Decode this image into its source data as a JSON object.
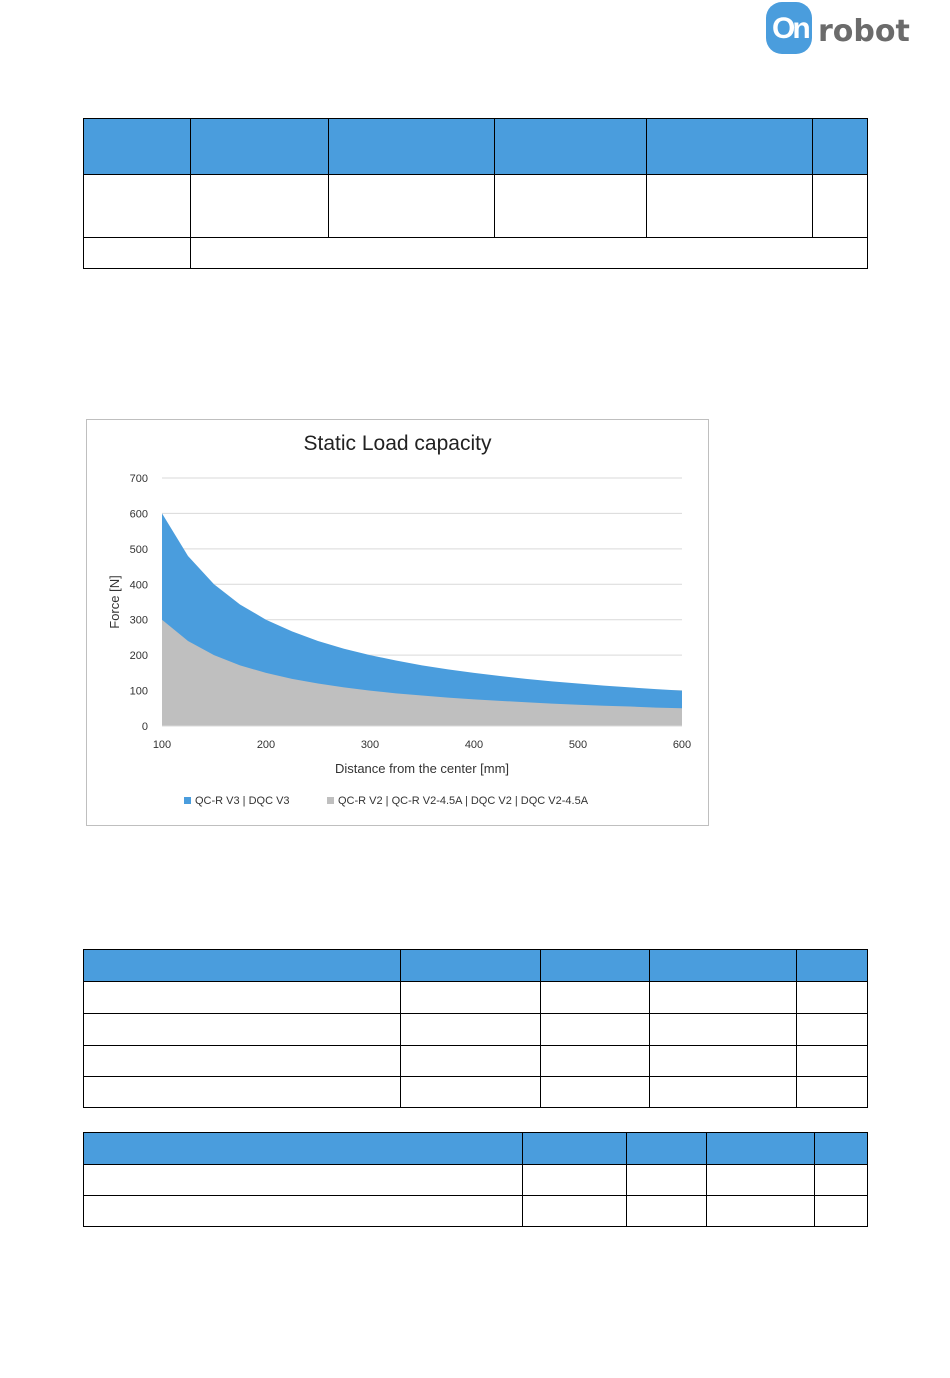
{
  "brand": {
    "logo_mark": "On",
    "logo_text": "robot",
    "color": "#4a9ddd"
  },
  "chart_data": {
    "type": "area",
    "title": "Static Load capacity",
    "xlabel": "Distance from the center [mm]",
    "ylabel": "Force [N]",
    "xlim": [
      100,
      600
    ],
    "ylim": [
      0,
      700
    ],
    "xticks": [
      100,
      200,
      300,
      400,
      500,
      600
    ],
    "yticks": [
      0,
      100,
      200,
      300,
      400,
      500,
      600,
      700
    ],
    "grid": true,
    "legend_position": "bottom",
    "x": [
      100,
      125,
      150,
      175,
      200,
      225,
      250,
      275,
      300,
      325,
      350,
      375,
      400,
      425,
      450,
      475,
      500,
      525,
      550,
      575,
      600
    ],
    "series": [
      {
        "name": "QC-R V3 | DQC V3",
        "color": "#4a9ddd",
        "values": [
          600,
          480,
          400,
          343,
          300,
          267,
          240,
          218,
          200,
          185,
          171,
          160,
          150,
          141,
          133,
          126,
          120,
          114,
          109,
          104,
          100
        ]
      },
      {
        "name": "QC-R V2 | QC-R V2-4.5A | DQC V2 | DQC V2-4.5A",
        "color": "#bfbfbf",
        "values": [
          300,
          240,
          200,
          171,
          150,
          133,
          120,
          109,
          100,
          92,
          86,
          80,
          75,
          71,
          67,
          63,
          60,
          57,
          55,
          52,
          50
        ]
      }
    ]
  }
}
